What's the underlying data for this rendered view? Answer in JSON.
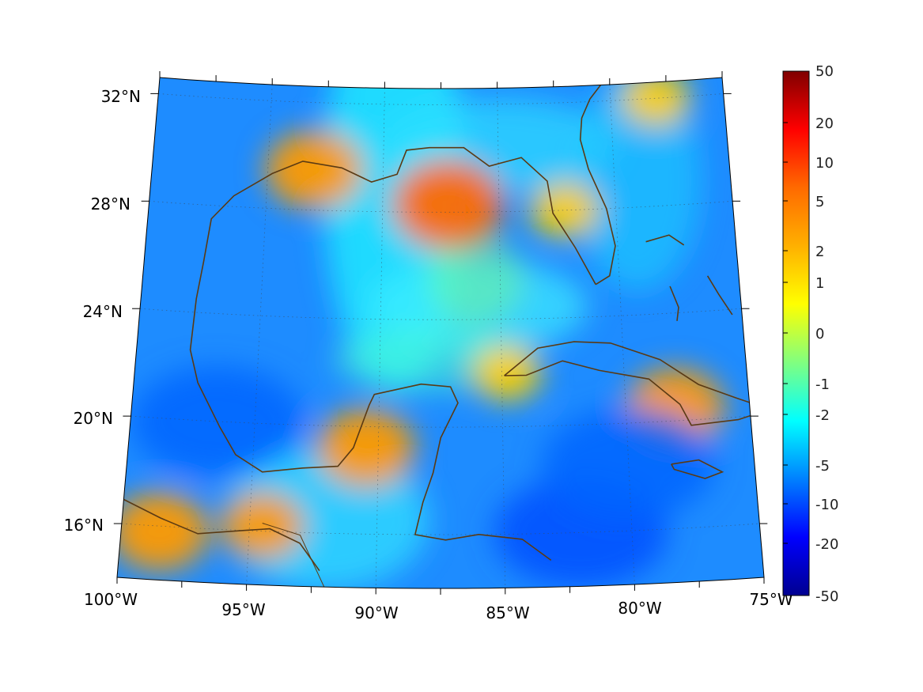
{
  "map": {
    "projection": "conic",
    "lon_range": [
      -100,
      -75
    ],
    "lat_range": [
      14,
      32.6
    ],
    "latitude_labels": [
      "32°N",
      "28°N",
      "24°N",
      "20°N",
      "16°N"
    ],
    "longitude_labels": [
      "100°W",
      "95°W",
      "90°W",
      "85°W",
      "80°W",
      "75°W"
    ],
    "latitude_values": [
      32,
      28,
      24,
      20,
      16
    ],
    "longitude_values": [
      -100,
      -95,
      -90,
      -85,
      -80,
      -75
    ],
    "gridlines": "dotted",
    "coastline_color": "#5a3a14",
    "colormap": "jet",
    "field": {
      "background_level": -4,
      "hotspots": [
        {
          "lon": -87.2,
          "lat": 28.3,
          "value": 5
        },
        {
          "lon": -93.0,
          "lat": 29.5,
          "value": 4
        },
        {
          "lon": -90.5,
          "lat": 19.2,
          "value": 4
        },
        {
          "lon": -98.5,
          "lat": 15.8,
          "value": 4
        },
        {
          "lon": -94.5,
          "lat": 16.2,
          "value": 3
        },
        {
          "lon": -78.0,
          "lat": 20.5,
          "value": 4
        },
        {
          "lon": -84.8,
          "lat": 22.0,
          "value": 2
        },
        {
          "lon": -82.2,
          "lat": 28.0,
          "value": 2
        },
        {
          "lon": -78.0,
          "lat": 32.0,
          "value": 2
        }
      ],
      "cold_spots": [
        {
          "lon": -82.0,
          "lat": 16.0,
          "value": -10
        },
        {
          "lon": -96.5,
          "lat": 20.0,
          "value": -8
        },
        {
          "lon": -80.0,
          "lat": 18.5,
          "value": -7
        }
      ]
    }
  },
  "colorbar": {
    "tick_labels": [
      "50",
      "20",
      "10",
      "5",
      "2",
      "1",
      "0",
      "-1",
      "-2",
      "-5",
      "-10",
      "-20",
      "-50"
    ],
    "colors": [
      "#800000",
      "#ff0000",
      "#ff6a00",
      "#ffb000",
      "#ffff00",
      "#80ff80",
      "#00ffff",
      "#0080ff",
      "#0000ff",
      "#000090"
    ]
  }
}
